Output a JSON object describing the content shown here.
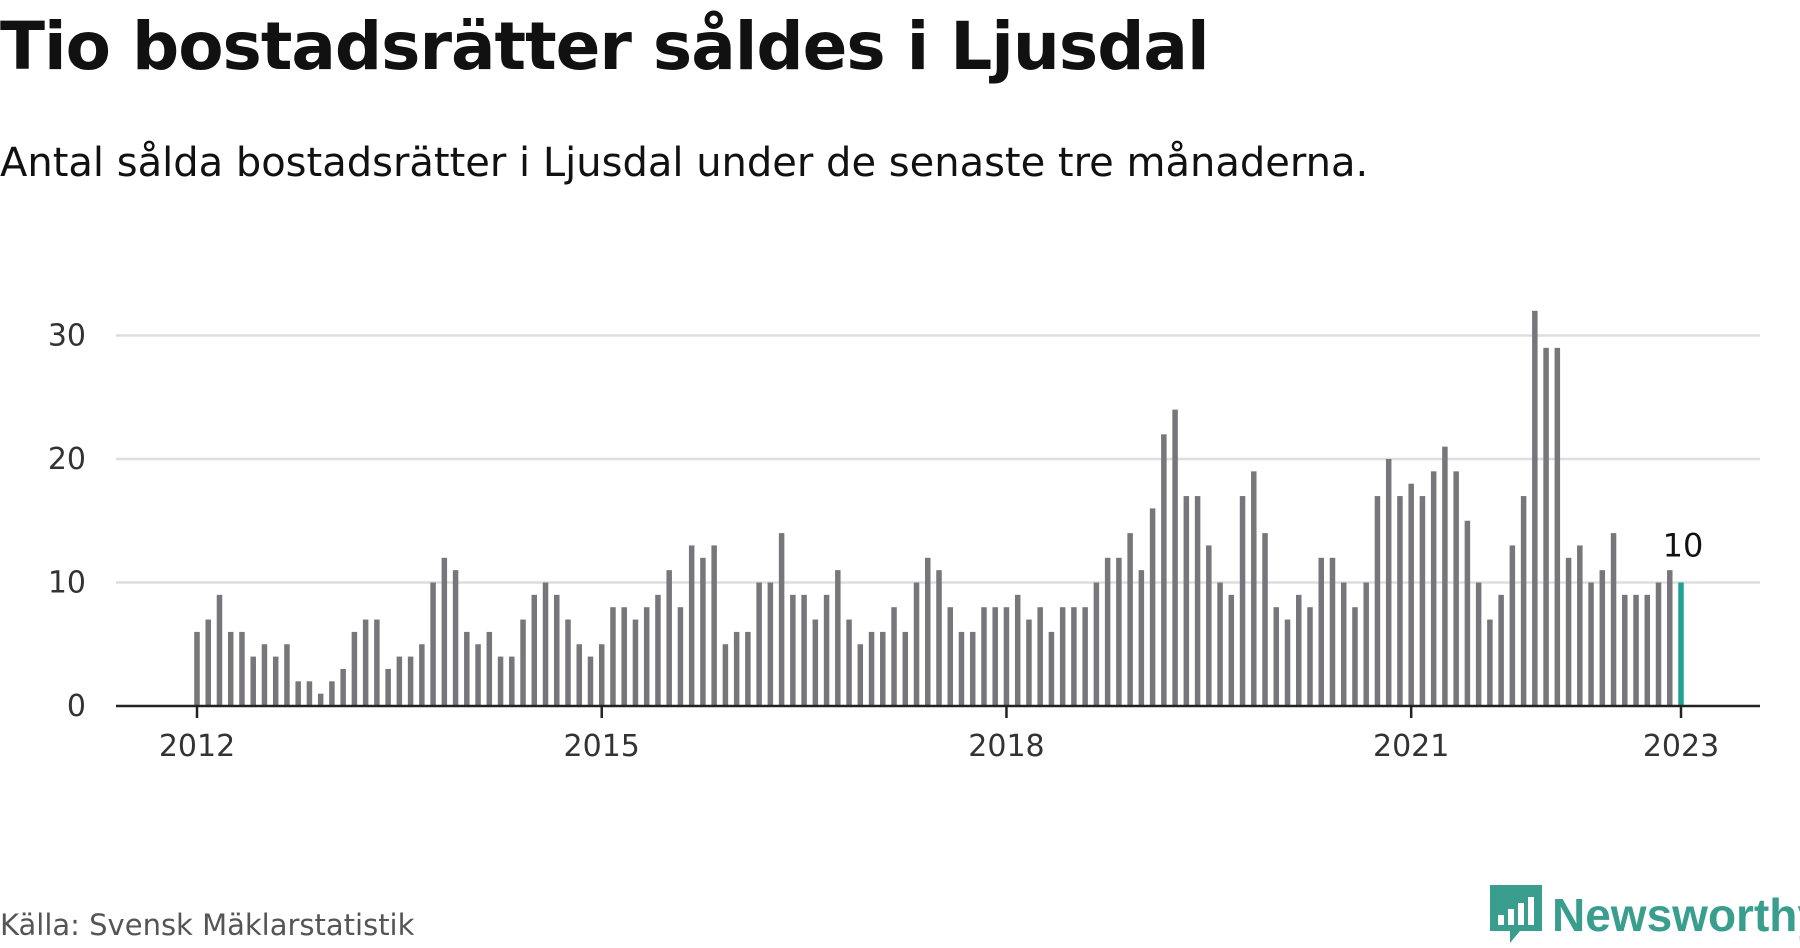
{
  "title": "Tio bostadsrätter såldes i Ljusdal",
  "subtitle": "Antal sålda bostadsrätter i Ljusdal under de senaste tre månaderna.",
  "source": "Källa: Svensk Mäklarstatistik",
  "brand": "Newsworthy",
  "colors": {
    "bar": "#77767b",
    "highlight": "#1fa394",
    "grid": "#dddddd",
    "brand": "#3a9e8f"
  },
  "chart_data": {
    "type": "bar",
    "title": "Tio bostadsrätter såldes i Ljusdal",
    "subtitle": "Antal sålda bostadsrätter i Ljusdal under de senaste tre månaderna.",
    "x_ticks": [
      "2012",
      "2015",
      "2018",
      "2021",
      "2023"
    ],
    "y_ticks": [
      "0",
      "10",
      "20",
      "30"
    ],
    "ylim": [
      0,
      33
    ],
    "grid": true,
    "x_start": "2012-01",
    "x_end": "2023-01",
    "values": [
      6,
      7,
      9,
      6,
      6,
      4,
      5,
      4,
      5,
      2,
      2,
      1,
      2,
      3,
      6,
      7,
      7,
      3,
      4,
      4,
      5,
      10,
      12,
      11,
      6,
      5,
      6,
      4,
      4,
      7,
      9,
      10,
      9,
      7,
      5,
      4,
      5,
      8,
      8,
      7,
      8,
      9,
      11,
      8,
      13,
      12,
      13,
      5,
      6,
      6,
      10,
      10,
      14,
      9,
      9,
      7,
      9,
      11,
      7,
      5,
      6,
      6,
      8,
      6,
      10,
      12,
      11,
      8,
      6,
      6,
      8,
      8,
      8,
      9,
      7,
      8,
      6,
      8,
      8,
      8,
      10,
      12,
      12,
      14,
      11,
      16,
      22,
      24,
      17,
      17,
      13,
      10,
      9,
      17,
      19,
      14,
      8,
      7,
      9,
      8,
      12,
      12,
      10,
      8,
      10,
      17,
      20,
      17,
      18,
      17,
      19,
      21,
      19,
      15,
      10,
      7,
      9,
      13,
      17,
      32,
      29,
      29,
      12,
      13,
      10,
      11,
      14,
      9,
      9,
      9,
      10,
      11,
      10
    ],
    "highlight": {
      "label": "10",
      "value": 10
    }
  }
}
